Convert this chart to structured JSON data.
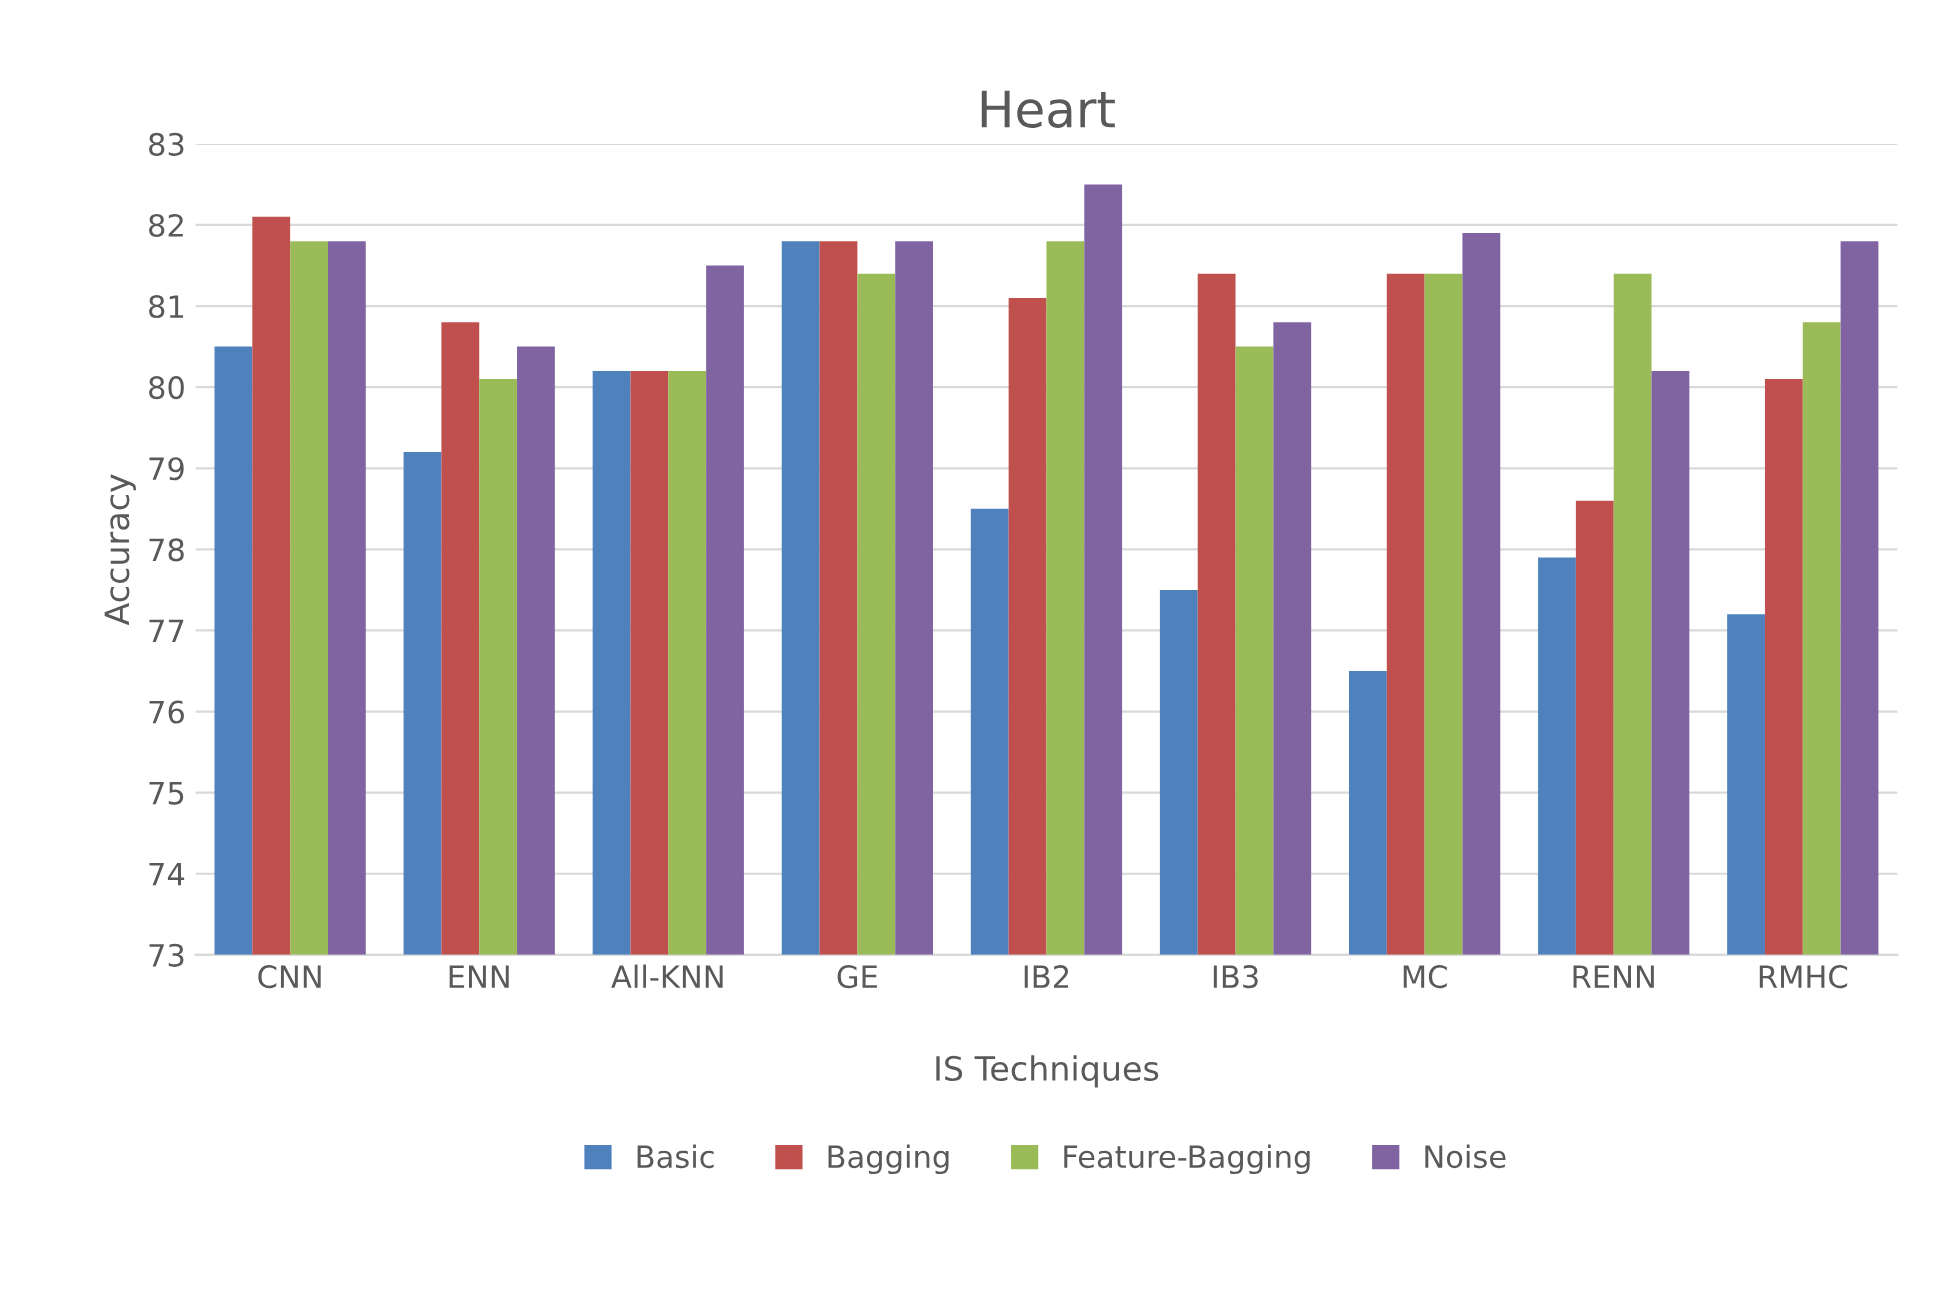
{
  "chart_data": {
    "type": "bar",
    "title": "Heart",
    "xlabel": "IS Techniques",
    "ylabel": "Accuracy",
    "categories": [
      "CNN",
      "ENN",
      "All-KNN",
      "GE",
      "IB2",
      "IB3",
      "MC",
      "RENN",
      "RMHC"
    ],
    "series": [
      {
        "name": "Basic",
        "color": "#4f81bd",
        "values": [
          80.5,
          79.2,
          80.2,
          81.8,
          78.5,
          77.5,
          76.5,
          77.9,
          77.2
        ]
      },
      {
        "name": "Bagging",
        "color": "#c0504d",
        "values": [
          82.1,
          80.8,
          80.2,
          81.8,
          81.1,
          81.4,
          81.4,
          78.6,
          80.1
        ]
      },
      {
        "name": "Feature-Bagging",
        "color": "#9bbb59",
        "values": [
          81.8,
          80.1,
          80.2,
          81.4,
          81.8,
          80.5,
          81.4,
          81.4,
          80.8
        ]
      },
      {
        "name": "Noise",
        "color": "#8064a2",
        "values": [
          81.8,
          80.5,
          81.5,
          81.8,
          82.5,
          80.8,
          81.9,
          80.2,
          81.8
        ]
      }
    ],
    "ylim": [
      73,
      83
    ],
    "yticks": [
      73,
      74,
      75,
      76,
      77,
      78,
      79,
      80,
      81,
      82,
      83
    ],
    "grid": "y",
    "legend": "bottom"
  }
}
